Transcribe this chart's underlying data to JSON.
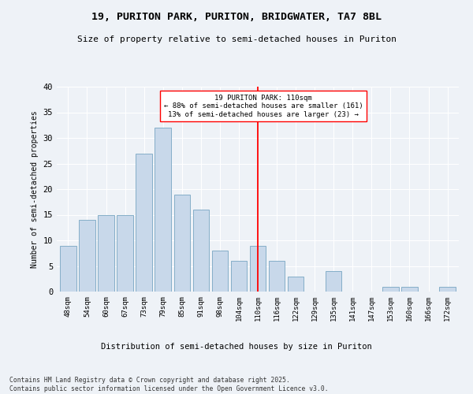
{
  "title1": "19, PURITON PARK, PURITON, BRIDGWATER, TA7 8BL",
  "title2": "Size of property relative to semi-detached houses in Puriton",
  "xlabel": "Distribution of semi-detached houses by size in Puriton",
  "ylabel": "Number of semi-detached properties",
  "categories": [
    "48sqm",
    "54sqm",
    "60sqm",
    "67sqm",
    "73sqm",
    "79sqm",
    "85sqm",
    "91sqm",
    "98sqm",
    "104sqm",
    "110sqm",
    "116sqm",
    "122sqm",
    "129sqm",
    "135sqm",
    "141sqm",
    "147sqm",
    "153sqm",
    "160sqm",
    "166sqm",
    "172sqm"
  ],
  "values": [
    9,
    14,
    15,
    15,
    27,
    32,
    19,
    16,
    8,
    6,
    9,
    6,
    3,
    0,
    4,
    0,
    0,
    1,
    1,
    0,
    1
  ],
  "bar_color": "#c8d8ea",
  "bar_edge_color": "#85aec8",
  "marker_index": 10,
  "annotation_title": "19 PURITON PARK: 110sqm",
  "annotation_line1": "← 88% of semi-detached houses are smaller (161)",
  "annotation_line2": "13% of semi-detached houses are larger (23) →",
  "ylim": [
    0,
    40
  ],
  "yticks": [
    0,
    5,
    10,
    15,
    20,
    25,
    30,
    35,
    40
  ],
  "footnote1": "Contains HM Land Registry data © Crown copyright and database right 2025.",
  "footnote2": "Contains public sector information licensed under the Open Government Licence v3.0.",
  "background_color": "#eef2f7",
  "grid_color": "#ffffff"
}
